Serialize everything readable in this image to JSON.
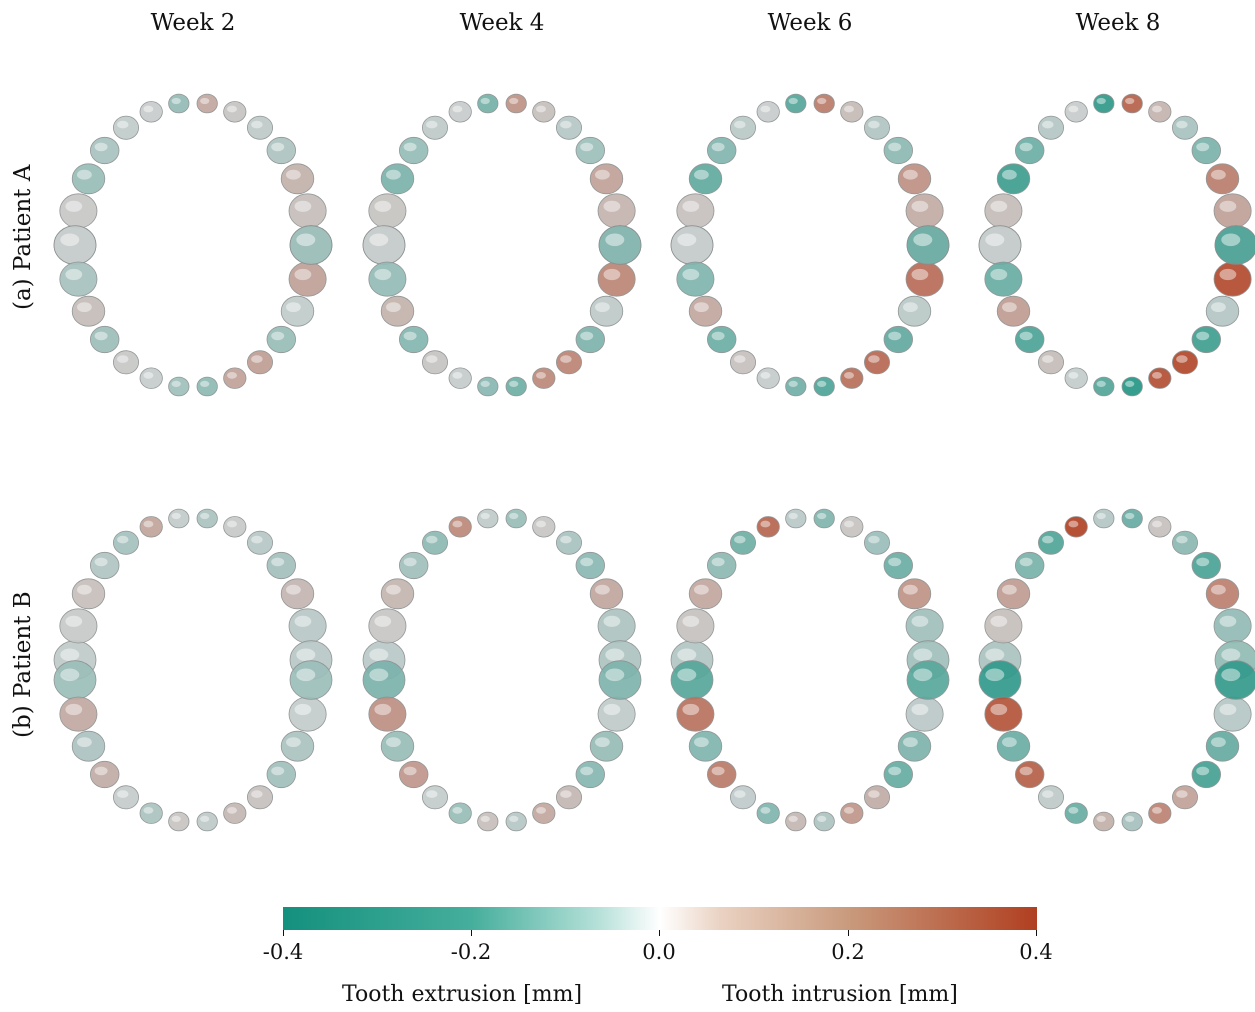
{
  "columns": [
    "Week 2",
    "Week 4",
    "Week 6",
    "Week 8"
  ],
  "rows": [
    "(a) Patient A",
    "(b) Patient B"
  ],
  "colorbar": {
    "ticks": [
      "-0.4",
      "-0.2",
      "0.0",
      "0.2",
      "0.4"
    ],
    "label_left": "Tooth extrusion [mm]",
    "label_right": "Tooth intrusion [mm]",
    "colors": {
      "negative": "#14907e",
      "zero": "#ffffff",
      "positive": "#b03f20"
    }
  },
  "intensity": {
    "patient_a": [
      0.35,
      0.55,
      0.75,
      1.0
    ],
    "patient_b": [
      0.3,
      0.5,
      0.75,
      1.0
    ]
  }
}
